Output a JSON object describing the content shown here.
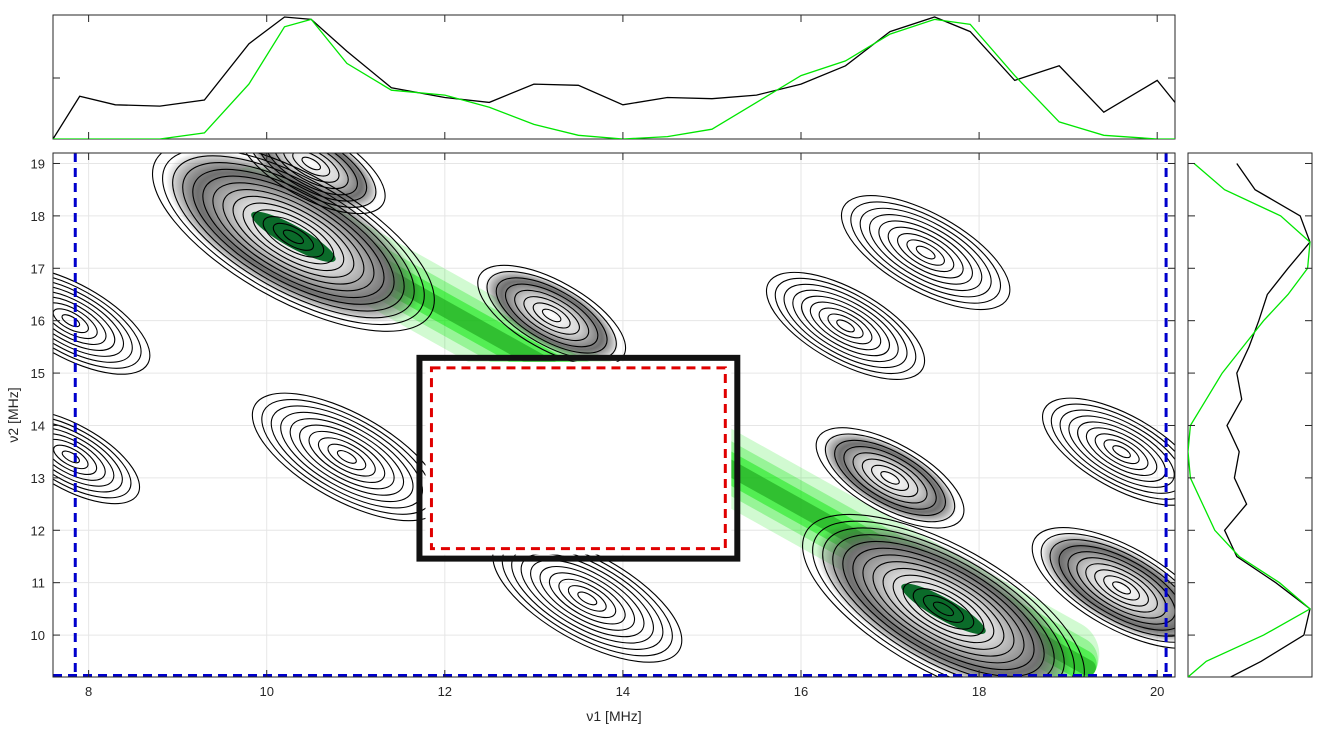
{
  "chart_data": [
    {
      "type": "line",
      "panel": "top-projection",
      "x": [
        7.6,
        7.9,
        8.3,
        8.8,
        9.3,
        9.8,
        10.2,
        10.5,
        10.9,
        11.4,
        12.0,
        12.5,
        13.0,
        13.5,
        14.0,
        14.5,
        15.0,
        15.5,
        16.0,
        16.5,
        17.0,
        17.5,
        17.9,
        18.4,
        18.9,
        19.4,
        20.0,
        20.2
      ],
      "series": [
        {
          "color": "#000000",
          "values": [
            0.0,
            0.35,
            0.28,
            0.27,
            0.32,
            0.78,
            1.0,
            0.98,
            0.72,
            0.42,
            0.34,
            0.3,
            0.45,
            0.44,
            0.28,
            0.34,
            0.33,
            0.36,
            0.45,
            0.6,
            0.88,
            1.0,
            0.88,
            0.48,
            0.6,
            0.22,
            0.48,
            0.3
          ]
        },
        {
          "color": "#00e600",
          "values": [
            0.0,
            0.0,
            0.0,
            0.0,
            0.05,
            0.45,
            0.92,
            0.98,
            0.62,
            0.4,
            0.36,
            0.26,
            0.12,
            0.03,
            0.0,
            0.02,
            0.08,
            0.3,
            0.52,
            0.64,
            0.86,
            0.98,
            0.94,
            0.52,
            0.14,
            0.03,
            0.0,
            0.0
          ]
        }
      ],
      "xlim": [
        7.6,
        20.2
      ],
      "ylim": [
        0,
        1
      ],
      "xticks": [
        8,
        10,
        12,
        14,
        16,
        18,
        20
      ],
      "grid": false
    },
    {
      "type": "contour",
      "panel": "main",
      "xlabel": "ν1 [MHz]",
      "ylabel": "ν2 [MHz]",
      "xlim": [
        7.6,
        20.2
      ],
      "ylim": [
        9.2,
        19.2
      ],
      "xticks": [
        8,
        10,
        12,
        14,
        16,
        18,
        20
      ],
      "yticks": [
        10,
        11,
        12,
        13,
        14,
        15,
        16,
        17,
        18,
        19
      ],
      "grid": true,
      "peaks": [
        {
          "x": 10.3,
          "y": 17.6,
          "intensity": 1.0,
          "shading": "gray",
          "core": "green"
        },
        {
          "x": 17.6,
          "y": 10.5,
          "intensity": 1.0,
          "shading": "gray",
          "core": "green"
        },
        {
          "x": 10.9,
          "y": 13.4,
          "intensity": 0.55,
          "shading": "none"
        },
        {
          "x": 13.6,
          "y": 10.7,
          "intensity": 0.55,
          "shading": "none"
        },
        {
          "x": 17.4,
          "y": 17.3,
          "intensity": 0.45,
          "shading": "none"
        },
        {
          "x": 16.5,
          "y": 15.9,
          "intensity": 0.4,
          "shading": "none"
        },
        {
          "x": 19.6,
          "y": 13.5,
          "intensity": 0.4,
          "shading": "none"
        },
        {
          "x": 7.8,
          "y": 16.0,
          "intensity": 0.4,
          "shading": "none"
        },
        {
          "x": 7.8,
          "y": 13.4,
          "intensity": 0.3,
          "shading": "none"
        },
        {
          "x": 19.6,
          "y": 10.9,
          "intensity": 0.5,
          "shading": "gray"
        },
        {
          "x": 10.5,
          "y": 19.0,
          "intensity": 0.35,
          "shading": "gray"
        },
        {
          "x": 13.2,
          "y": 16.1,
          "intensity": 0.35,
          "shading": "gray"
        },
        {
          "x": 17.0,
          "y": 13.0,
          "intensity": 0.35,
          "shading": "gray"
        }
      ],
      "green_band": {
        "from": [
          9.5,
          18.6
        ],
        "to": [
          19.3,
          9.3
        ]
      },
      "excluded_box": {
        "x": [
          11.85,
          15.15
        ],
        "y": [
          11.65,
          15.1
        ],
        "color": "#e00000",
        "style": "dashed"
      },
      "boundary_lines": {
        "x": [
          7.85,
          20.1
        ],
        "y": [
          9.2
        ],
        "color": "#0000cc",
        "style": "dashed"
      }
    },
    {
      "type": "line",
      "panel": "right-projection",
      "y": [
        9.2,
        9.5,
        10.0,
        10.5,
        11.0,
        11.5,
        12.0,
        12.5,
        13.0,
        13.5,
        14.0,
        14.5,
        15.0,
        15.5,
        16.0,
        16.5,
        17.0,
        17.5,
        18.0,
        18.5,
        19.0
      ],
      "series": [
        {
          "color": "#000000",
          "values": [
            0.35,
            0.6,
            0.95,
            1.0,
            0.72,
            0.4,
            0.3,
            0.48,
            0.38,
            0.42,
            0.32,
            0.44,
            0.4,
            0.5,
            0.58,
            0.65,
            0.82,
            1.0,
            0.92,
            0.55,
            0.4
          ]
        },
        {
          "color": "#00e600",
          "values": [
            0.0,
            0.15,
            0.62,
            1.0,
            0.75,
            0.42,
            0.22,
            0.12,
            0.02,
            0.0,
            0.02,
            0.15,
            0.28,
            0.45,
            0.62,
            0.82,
            0.98,
            1.0,
            0.76,
            0.3,
            0.05
          ]
        }
      ],
      "ylim": [
        9.2,
        19.2
      ],
      "xlim": [
        0,
        1
      ],
      "yticks": [
        10,
        11,
        12,
        13,
        14,
        15,
        16,
        17,
        18,
        19
      ],
      "grid": false
    }
  ],
  "colors": {
    "axis": "#262626",
    "grid": "#e6e6e6",
    "contour": "#000000",
    "green": "#00e600",
    "excluded_box": "#e00000",
    "boundary": "#0000cc"
  }
}
